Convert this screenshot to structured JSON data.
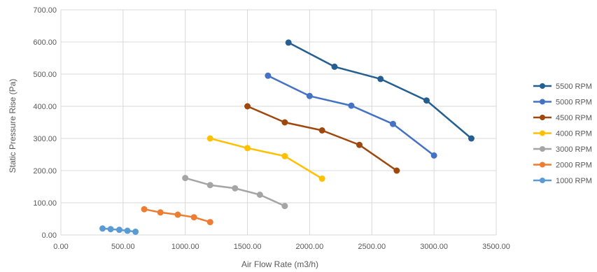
{
  "chart_data": {
    "type": "line",
    "title": "",
    "xlabel": "Air Flow Rate (m3/h)",
    "ylabel": "Static Pressure Rise (Pa)",
    "xlim": [
      0,
      3500
    ],
    "ylim": [
      0,
      700
    ],
    "xticks": [
      "0.00",
      "500.00",
      "1000.00",
      "1500.00",
      "2000.00",
      "2500.00",
      "3000.00",
      "3500.00"
    ],
    "yticks": [
      "0.00",
      "100.00",
      "200.00",
      "300.00",
      "400.00",
      "500.00",
      "600.00",
      "700.00"
    ],
    "grid": true,
    "legend_position": "right",
    "series": [
      {
        "name": "5500 RPM",
        "color": "#255e91",
        "x": [
          1830,
          2200,
          2570,
          2940,
          3300
        ],
        "y": [
          598,
          523,
          485,
          418,
          300
        ]
      },
      {
        "name": "5000 RPM",
        "color": "#4472c4",
        "x": [
          1665,
          2000,
          2335,
          2670,
          3000
        ],
        "y": [
          495,
          432,
          402,
          345,
          247
        ]
      },
      {
        "name": "4500 RPM",
        "color": "#9e480e",
        "x": [
          1500,
          1800,
          2100,
          2400,
          2700
        ],
        "y": [
          400,
          350,
          325,
          280,
          200
        ]
      },
      {
        "name": "4000 RPM",
        "color": "#ffc000",
        "x": [
          1200,
          1500,
          1800,
          2100
        ],
        "y": [
          300,
          270,
          245,
          175
        ]
      },
      {
        "name": "3000 RPM",
        "color": "#a5a5a5",
        "x": [
          1000,
          1200,
          1400,
          1600,
          1800
        ],
        "y": [
          177,
          155,
          145,
          125,
          90
        ]
      },
      {
        "name": "2000 RPM",
        "color": "#ed7d31",
        "x": [
          670,
          800,
          940,
          1070,
          1200
        ],
        "y": [
          80,
          70,
          63,
          55,
          40
        ]
      },
      {
        "name": "1000 RPM",
        "color": "#5b9bd5",
        "x": [
          335,
          400,
          470,
          535,
          600
        ],
        "y": [
          20,
          18,
          16,
          13,
          10
        ]
      }
    ]
  }
}
